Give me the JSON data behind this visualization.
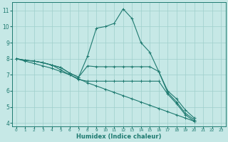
{
  "xlabel": "Humidex (Indice chaleur)",
  "background_color": "#c6e8e6",
  "grid_color": "#9ecfcb",
  "line_color": "#1e7a70",
  "xlim": [
    -0.5,
    23.5
  ],
  "ylim": [
    3.8,
    11.5
  ],
  "yticks": [
    4,
    5,
    6,
    7,
    8,
    9,
    10,
    11
  ],
  "xticks": [
    0,
    1,
    2,
    3,
    4,
    5,
    6,
    7,
    8,
    9,
    10,
    11,
    12,
    13,
    14,
    15,
    16,
    17,
    18,
    19,
    20,
    21,
    22,
    23
  ],
  "lines": [
    {
      "x": [
        0,
        1,
        2,
        3,
        4,
        5,
        6,
        7,
        8,
        9,
        10,
        11,
        12,
        13,
        14,
        15,
        16,
        17,
        18,
        19,
        20,
        21,
        22,
        23
      ],
      "y": [
        8.0,
        7.9,
        7.85,
        7.75,
        7.6,
        7.45,
        7.1,
        6.85,
        8.15,
        9.9,
        10.0,
        10.2,
        11.1,
        10.5,
        9.0,
        8.4,
        7.2,
        5.9,
        5.3,
        4.6,
        4.2,
        null,
        null,
        null
      ]
    },
    {
      "x": [
        0,
        1,
        2,
        3,
        4,
        5,
        6,
        7,
        8,
        9,
        10,
        11,
        12,
        13,
        14,
        15,
        16,
        17,
        18,
        19,
        20,
        21,
        22,
        23
      ],
      "y": [
        8.0,
        7.9,
        7.85,
        7.75,
        7.6,
        7.45,
        7.1,
        6.85,
        7.55,
        7.5,
        7.5,
        7.5,
        7.5,
        7.5,
        7.5,
        7.5,
        7.2,
        6.0,
        5.5,
        4.8,
        4.3,
        null,
        null,
        null
      ]
    },
    {
      "x": [
        0,
        1,
        2,
        3,
        4,
        5,
        6,
        7,
        8,
        9,
        10,
        11,
        12,
        13,
        14,
        15,
        16,
        17,
        18,
        19,
        20,
        21,
        22,
        23
      ],
      "y": [
        8.0,
        7.9,
        7.85,
        7.75,
        7.6,
        7.3,
        7.0,
        6.7,
        6.6,
        6.6,
        6.6,
        6.6,
        6.6,
        6.6,
        6.6,
        6.6,
        6.6,
        5.8,
        5.2,
        4.5,
        4.1,
        null,
        null,
        null
      ]
    },
    {
      "x": [
        0,
        1,
        2,
        3,
        4,
        5,
        6,
        7,
        8,
        9,
        10,
        11,
        12,
        13,
        14,
        15,
        16,
        17,
        18,
        19,
        20,
        21,
        22,
        23
      ],
      "y": [
        8.0,
        7.85,
        7.7,
        7.55,
        7.4,
        7.2,
        7.0,
        6.75,
        6.5,
        6.3,
        6.1,
        5.9,
        5.7,
        5.5,
        5.3,
        5.1,
        4.9,
        4.7,
        4.5,
        4.3,
        4.1,
        null,
        null,
        null
      ]
    }
  ]
}
